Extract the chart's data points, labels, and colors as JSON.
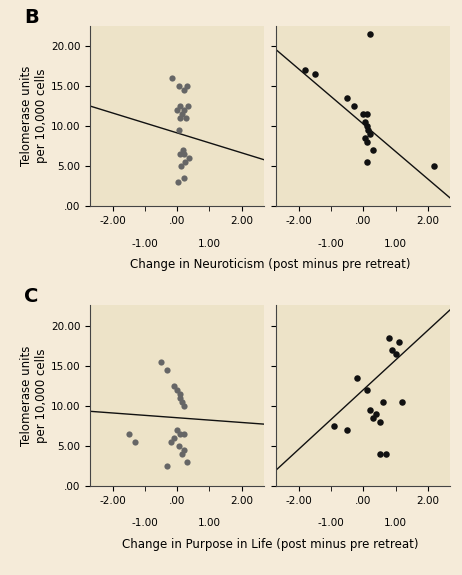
{
  "background_color": "#f5ebd9",
  "panel_background": "#ede3c8",
  "B_left_x": [
    -0.15,
    0.05,
    0.3,
    0.2,
    0.1,
    0.2,
    0.35,
    0.0,
    0.15,
    0.08,
    0.28,
    0.05,
    0.18,
    0.08,
    0.22,
    0.38,
    0.25,
    0.12,
    0.22,
    0.02
  ],
  "B_left_y": [
    16.0,
    15.0,
    15.0,
    14.5,
    12.5,
    12.0,
    12.5,
    12.0,
    11.5,
    11.0,
    11.0,
    9.5,
    7.0,
    6.5,
    6.5,
    6.0,
    5.5,
    5.0,
    3.5,
    3.0
  ],
  "B_left_line_x": [
    -2.7,
    2.7
  ],
  "B_left_line_y": [
    12.5,
    5.8
  ],
  "B_right_x": [
    0.2,
    -1.8,
    -1.5,
    -0.5,
    -0.3,
    0.1,
    0.0,
    0.05,
    0.1,
    0.15,
    0.2,
    0.05,
    0.1,
    0.3,
    0.1,
    2.2
  ],
  "B_right_y": [
    21.5,
    17.0,
    16.5,
    13.5,
    12.5,
    11.5,
    11.5,
    10.5,
    10.0,
    9.5,
    9.0,
    8.5,
    8.0,
    7.0,
    5.5,
    5.0
  ],
  "B_right_line_x": [
    -2.7,
    2.7
  ],
  "B_right_line_y": [
    19.5,
    1.0
  ],
  "C_left_x": [
    -1.5,
    -1.3,
    -0.5,
    -0.3,
    -0.1,
    0.0,
    0.1,
    0.1,
    0.15,
    0.2,
    0.0,
    0.1,
    0.2,
    -0.1,
    -0.2,
    0.05,
    0.2,
    0.15,
    0.3,
    -0.3
  ],
  "C_left_y": [
    6.5,
    5.5,
    15.5,
    14.5,
    12.5,
    12.0,
    11.5,
    11.0,
    10.5,
    10.0,
    7.0,
    6.5,
    6.5,
    6.0,
    5.5,
    5.0,
    4.5,
    4.0,
    3.0,
    2.5
  ],
  "C_left_line_x": [
    -2.7,
    2.7
  ],
  "C_left_line_y": [
    9.3,
    7.7
  ],
  "C_right_x": [
    -0.9,
    -0.5,
    -0.2,
    0.1,
    0.2,
    0.3,
    0.4,
    0.5,
    0.6,
    0.8,
    0.9,
    1.0,
    1.1,
    1.2,
    0.7,
    0.5
  ],
  "C_right_y": [
    7.5,
    7.0,
    13.5,
    12.0,
    9.5,
    8.5,
    9.0,
    8.0,
    10.5,
    18.5,
    17.0,
    16.5,
    18.0,
    10.5,
    4.0,
    4.0
  ],
  "C_right_line_x": [
    -2.7,
    2.7
  ],
  "C_right_line_y": [
    2.0,
    22.0
  ],
  "ylabel": "Telomerase units\nper 10,000 cells",
  "xlabel_B": "Change in Neuroticism (post minus pre retreat)",
  "xlabel_C": "Change in Purpose in Life (post minus pre retreat)",
  "label_B": "B",
  "label_C": "C",
  "yticks": [
    0.0,
    5.0,
    10.0,
    15.0,
    20.0
  ],
  "ytick_labels": [
    ".00",
    "5.00",
    "10.00",
    "15.00",
    "20.00"
  ],
  "ylim": [
    0,
    22.5
  ],
  "xlim": [
    -2.7,
    2.7
  ],
  "dot_size_controls": 20,
  "dot_size_meditators": 22,
  "dot_color_controls": "#666666",
  "dot_color_meditators": "#111111",
  "line_color": "#111111",
  "line_width": 1.0,
  "font_size_tick": 7.5,
  "font_size_label": 8.5,
  "font_size_panel": 14
}
